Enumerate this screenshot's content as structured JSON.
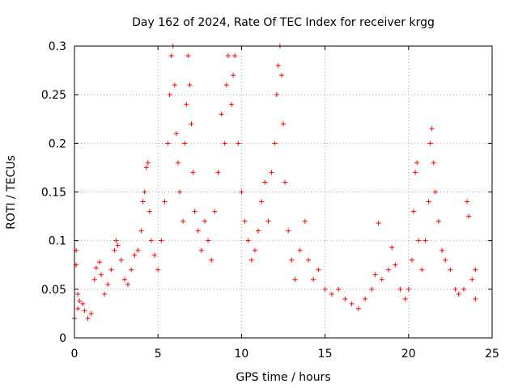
{
  "chart_data": {
    "type": "scatter",
    "title": "Day 162 of 2024, Rate Of TEC Index for receiver krgg",
    "xlabel": "GPS time / hours",
    "ylabel": "ROTI / TECUs",
    "xlim": [
      0,
      25
    ],
    "ylim": [
      0,
      0.3
    ],
    "xticks": [
      "0",
      "5",
      "10",
      "15",
      "20",
      "25"
    ],
    "yticks": [
      "0",
      "0.05",
      "0.1",
      "0.15",
      "0.2",
      "0.25",
      "0.3"
    ],
    "grid": true,
    "marker": "+",
    "color": "#ff0000",
    "series": [
      {
        "points": [
          [
            0.0,
            0.02
          ],
          [
            0.1,
            0.09
          ],
          [
            0.1,
            0.075
          ],
          [
            0.2,
            0.045
          ],
          [
            0.2,
            0.03
          ],
          [
            0.3,
            0.038
          ],
          [
            0.5,
            0.035
          ],
          [
            0.6,
            0.028
          ],
          [
            0.8,
            0.02
          ],
          [
            1.0,
            0.025
          ],
          [
            1.2,
            0.06
          ],
          [
            1.3,
            0.072
          ],
          [
            1.5,
            0.078
          ],
          [
            1.6,
            0.065
          ],
          [
            1.8,
            0.045
          ],
          [
            2.0,
            0.055
          ],
          [
            2.2,
            0.07
          ],
          [
            2.4,
            0.09
          ],
          [
            2.5,
            0.1
          ],
          [
            2.6,
            0.095
          ],
          [
            2.8,
            0.08
          ],
          [
            3.0,
            0.06
          ],
          [
            3.2,
            0.055
          ],
          [
            3.4,
            0.07
          ],
          [
            3.6,
            0.085
          ],
          [
            3.8,
            0.09
          ],
          [
            4.0,
            0.11
          ],
          [
            4.1,
            0.14
          ],
          [
            4.2,
            0.15
          ],
          [
            4.3,
            0.175
          ],
          [
            4.4,
            0.18
          ],
          [
            4.5,
            0.13
          ],
          [
            4.6,
            0.1
          ],
          [
            4.8,
            0.085
          ],
          [
            5.0,
            0.07
          ],
          [
            5.2,
            0.1
          ],
          [
            5.4,
            0.14
          ],
          [
            5.6,
            0.2
          ],
          [
            5.7,
            0.25
          ],
          [
            5.8,
            0.29
          ],
          [
            5.9,
            0.3
          ],
          [
            6.0,
            0.26
          ],
          [
            6.1,
            0.21
          ],
          [
            6.2,
            0.18
          ],
          [
            6.3,
            0.15
          ],
          [
            6.5,
            0.12
          ],
          [
            6.6,
            0.2
          ],
          [
            6.7,
            0.24
          ],
          [
            6.8,
            0.29
          ],
          [
            6.9,
            0.26
          ],
          [
            7.0,
            0.22
          ],
          [
            7.1,
            0.17
          ],
          [
            7.2,
            0.13
          ],
          [
            7.4,
            0.11
          ],
          [
            7.6,
            0.09
          ],
          [
            7.8,
            0.12
          ],
          [
            8.0,
            0.1
          ],
          [
            8.2,
            0.08
          ],
          [
            8.4,
            0.13
          ],
          [
            8.6,
            0.17
          ],
          [
            8.8,
            0.23
          ],
          [
            9.0,
            0.2
          ],
          [
            9.1,
            0.26
          ],
          [
            9.2,
            0.29
          ],
          [
            9.4,
            0.24
          ],
          [
            9.5,
            0.27
          ],
          [
            9.6,
            0.29
          ],
          [
            9.8,
            0.2
          ],
          [
            10.0,
            0.15
          ],
          [
            10.2,
            0.12
          ],
          [
            10.4,
            0.1
          ],
          [
            10.6,
            0.08
          ],
          [
            10.8,
            0.09
          ],
          [
            11.0,
            0.11
          ],
          [
            11.2,
            0.14
          ],
          [
            11.4,
            0.16
          ],
          [
            11.6,
            0.12
          ],
          [
            11.8,
            0.17
          ],
          [
            12.0,
            0.2
          ],
          [
            12.1,
            0.25
          ],
          [
            12.2,
            0.28
          ],
          [
            12.3,
            0.3
          ],
          [
            12.4,
            0.27
          ],
          [
            12.5,
            0.22
          ],
          [
            12.6,
            0.16
          ],
          [
            12.8,
            0.11
          ],
          [
            13.0,
            0.08
          ],
          [
            13.2,
            0.06
          ],
          [
            13.5,
            0.09
          ],
          [
            13.8,
            0.12
          ],
          [
            14.0,
            0.08
          ],
          [
            14.3,
            0.06
          ],
          [
            14.6,
            0.07
          ],
          [
            15.0,
            0.05
          ],
          [
            15.4,
            0.045
          ],
          [
            15.8,
            0.05
          ],
          [
            16.2,
            0.04
          ],
          [
            16.6,
            0.035
          ],
          [
            17.0,
            0.03
          ],
          [
            17.4,
            0.04
          ],
          [
            17.8,
            0.05
          ],
          [
            18.0,
            0.065
          ],
          [
            18.2,
            0.118
          ],
          [
            18.4,
            0.06
          ],
          [
            18.8,
            0.07
          ],
          [
            19.0,
            0.093
          ],
          [
            19.2,
            0.075
          ],
          [
            19.5,
            0.05
          ],
          [
            19.8,
            0.04
          ],
          [
            20.0,
            0.05
          ],
          [
            20.2,
            0.08
          ],
          [
            20.3,
            0.13
          ],
          [
            20.4,
            0.17
          ],
          [
            20.5,
            0.18
          ],
          [
            20.6,
            0.1
          ],
          [
            20.8,
            0.07
          ],
          [
            21.0,
            0.1
          ],
          [
            21.2,
            0.14
          ],
          [
            21.3,
            0.2
          ],
          [
            21.4,
            0.215
          ],
          [
            21.5,
            0.18
          ],
          [
            21.6,
            0.15
          ],
          [
            21.8,
            0.12
          ],
          [
            22.0,
            0.09
          ],
          [
            22.2,
            0.08
          ],
          [
            22.5,
            0.07
          ],
          [
            22.8,
            0.05
          ],
          [
            23.0,
            0.045
          ],
          [
            23.3,
            0.05
          ],
          [
            23.5,
            0.14
          ],
          [
            23.6,
            0.125
          ],
          [
            23.8,
            0.06
          ],
          [
            24.0,
            0.04
          ],
          [
            24.0,
            0.07
          ]
        ]
      }
    ]
  }
}
